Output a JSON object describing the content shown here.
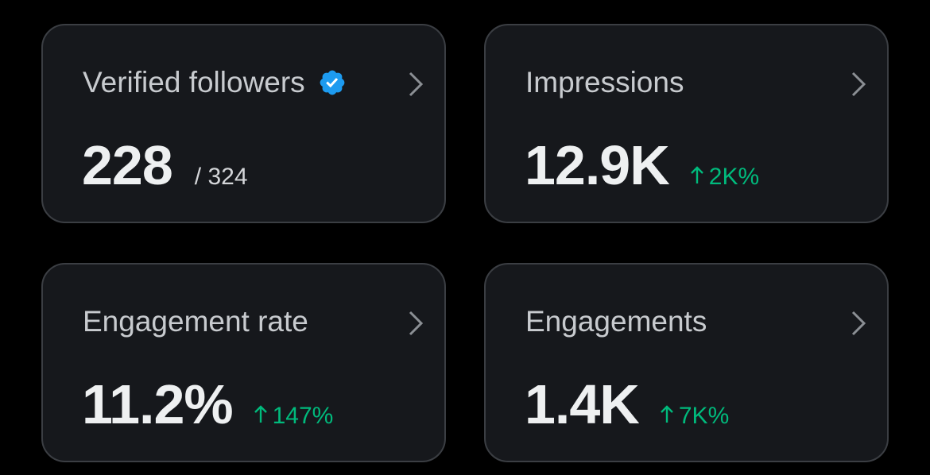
{
  "cards": [
    {
      "label": "Verified followers",
      "value": "228",
      "total": "/ 324"
    },
    {
      "label": "Impressions",
      "value": "12.9K",
      "change": "2K%"
    },
    {
      "label": "Engagement rate",
      "value": "11.2%",
      "change": "147%"
    },
    {
      "label": "Engagements",
      "value": "1.4K",
      "change": "7K%"
    }
  ]
}
